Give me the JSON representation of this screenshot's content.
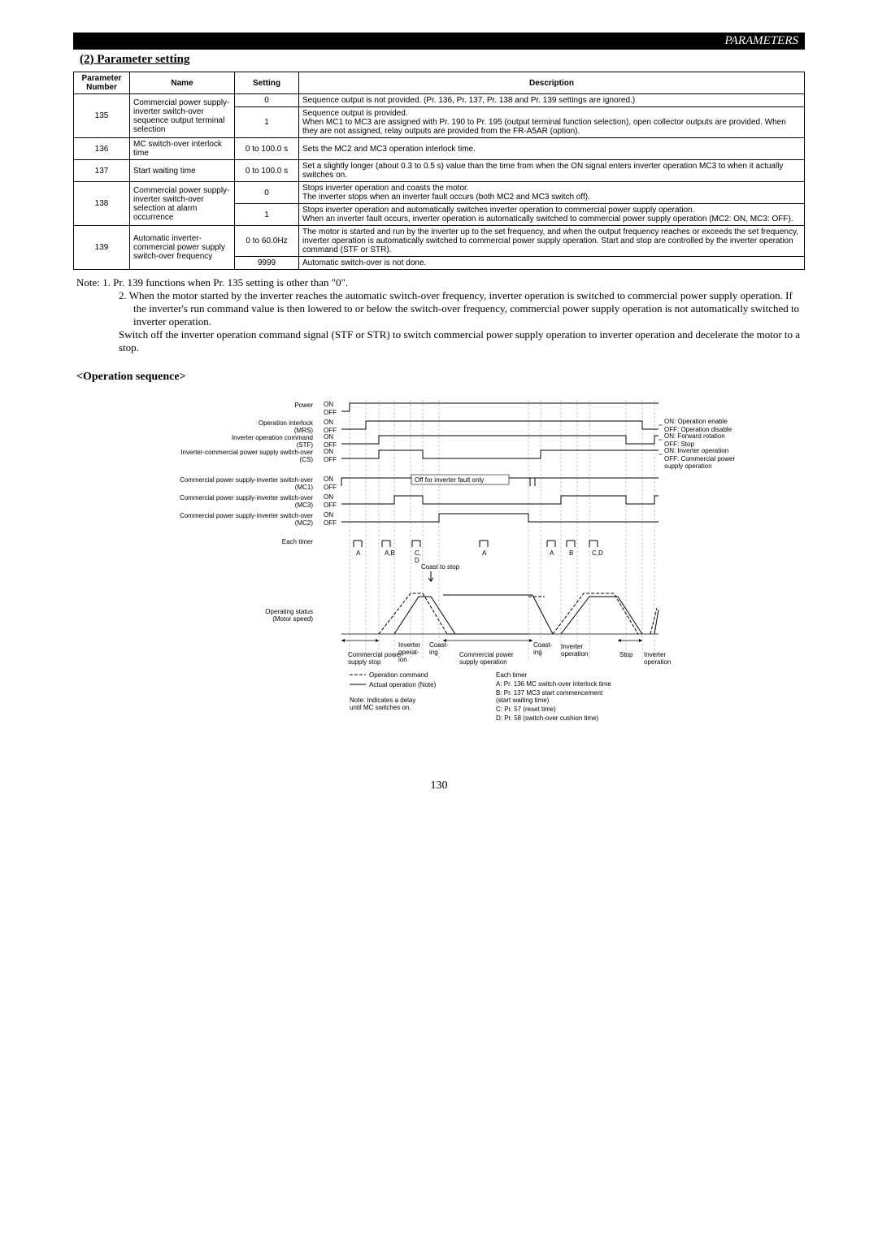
{
  "header": {
    "title": "PARAMETERS"
  },
  "section2": {
    "title": "(2) Parameter setting"
  },
  "table": {
    "headers": {
      "num": "Parameter Number",
      "name": "Name",
      "setting": "Setting",
      "desc": "Description"
    },
    "rows": [
      {
        "num": "135",
        "name": "Commercial power supply-inverter switch-over sequence output terminal selection",
        "cells": [
          {
            "setting": "0",
            "desc": "Sequence output is not provided. (Pr. 136, Pr. 137, Pr. 138 and Pr. 139 settings are ignored.)"
          },
          {
            "setting": "1",
            "desc": "Sequence output is provided.\nWhen MC1 to MC3 are assigned with Pr. 190 to Pr. 195 (output terminal function selection), open collector outputs are provided. When they are not assigned, relay outputs are provided from the FR-A5AR (option)."
          }
        ]
      },
      {
        "num": "136",
        "name": "MC switch-over interlock time",
        "cells": [
          {
            "setting": "0 to 100.0 s",
            "desc": "Sets the MC2 and MC3 operation interlock time."
          }
        ]
      },
      {
        "num": "137",
        "name": "Start waiting time",
        "cells": [
          {
            "setting": "0 to 100.0 s",
            "desc": "Set a slightly longer (about 0.3 to 0.5 s) value than the time from when the ON signal enters inverter operation MC3 to when it actually switches on."
          }
        ]
      },
      {
        "num": "138",
        "name": "Commercial power supply-inverter switch-over selection at alarm occurrence",
        "cells": [
          {
            "setting": "0",
            "desc": "Stops inverter operation and coasts the motor.\nThe inverter stops when an inverter fault occurs (both MC2 and MC3 switch off)."
          },
          {
            "setting": "1",
            "desc": "Stops inverter operation and automatically switches inverter operation to commercial power supply operation.\nWhen an inverter fault occurs, inverter operation is automatically switched to commercial power supply operation (MC2: ON, MC3: OFF)."
          }
        ]
      },
      {
        "num": "139",
        "name": "Automatic inverter-commercial power supply switch-over frequency",
        "cells": [
          {
            "setting": "0 to 60.0Hz",
            "desc": "The motor is started and run by the inverter up to the set frequency, and when the output frequency reaches or exceeds the set frequency, inverter operation is automatically switched to commercial power supply operation. Start and stop are controlled by the inverter operation command (STF or STR)."
          },
          {
            "setting": "9999",
            "desc": "Automatic switch-over is not done."
          }
        ]
      }
    ]
  },
  "notes": {
    "lead": "Note:",
    "n1": "1.  Pr. 139 functions when Pr. 135 setting is other than \"0\".",
    "n2a": "2.  When the motor started by the inverter reaches the automatic switch-over frequency, inverter operation is switched to commercial power supply operation. If the inverter's run command value is then lowered to or below the switch-over frequency, commercial power supply operation is not automatically switched to inverter operation.",
    "n2b": "Switch off the inverter operation command signal (STF or STR) to switch commercial power supply operation to inverter operation and decelerate the motor to a stop."
  },
  "opseq": {
    "title": "<Operation sequence>"
  },
  "diagram": {
    "bg": "#ffffff",
    "stroke": "#000000",
    "dash_gray": "#a6a6a6",
    "font_small": 8,
    "font_tiny": 7,
    "signals": [
      {
        "label_left": "Power",
        "on": "ON",
        "off": "OFF",
        "right": ""
      },
      {
        "label_left": "Operation interlock\n(MRS)",
        "on": "ON",
        "off": "OFF",
        "right_on": "ON: Operation enable",
        "right_off": "OFF: Operation disable"
      },
      {
        "label_left": "Inverter operation command\n(STF)",
        "on": "ON",
        "off": "OFF",
        "right_on": "ON: Forward rotation",
        "right_off": "OFF: Stop"
      },
      {
        "label_left": "Inverter-commercial power supply switch-over\n(CS)",
        "on": "ON",
        "off": "OFF",
        "right_on": "ON: Inverter operation",
        "right_off": "OFF: Commercial power\n          supply operation"
      },
      {
        "label_left": "Commercial power supply-inverter switch-over\n(MC1)",
        "on": "ON",
        "off": "OFF",
        "note": "Off for inverter fault only"
      },
      {
        "label_left": "Commercial power supply-inverter switch-over\n(MC3)",
        "on": "ON",
        "off": "OFF"
      },
      {
        "label_left": "Commercial power supply-inverter switch-over\n(MC2)",
        "on": "ON",
        "off": "OFF"
      }
    ],
    "each_timer": "Each timer",
    "timer_labels": [
      "A",
      "A,B",
      "C,\nD",
      "A",
      "A",
      "B",
      "C,D"
    ],
    "coast_to_stop": "Coast to stop",
    "operating_status": "Operating status\n(Motor speed)",
    "speed_labels": {
      "comm_stop": "Commercial power\nsupply stop",
      "inv_op1": "Inverter\noperat-\nion",
      "coast1": "Coast-\ning",
      "comm_op": "Commercial power\nsupply operation",
      "coast2": "Coast-\ning",
      "inv_op2": "Inverter\noperation",
      "stop": "Stop",
      "inv_op3": "Inverter\noperation"
    },
    "legend": {
      "cmd": "Operation command",
      "actual": "Actual operation (Note)",
      "note": "Note: Indicates a delay\nuntil MC switches on.",
      "each_timer_title": "Each timer",
      "a": "A: Pr. 136 MC switch-over interlock time",
      "b": "B: Pr. 137 MC3 start commencement\n    (start waiting time)",
      "c": "C: Pr. 57 (reset time)",
      "d": "D: Pr. 58 (switch-over cushion time)"
    }
  },
  "page": {
    "number": "130"
  }
}
